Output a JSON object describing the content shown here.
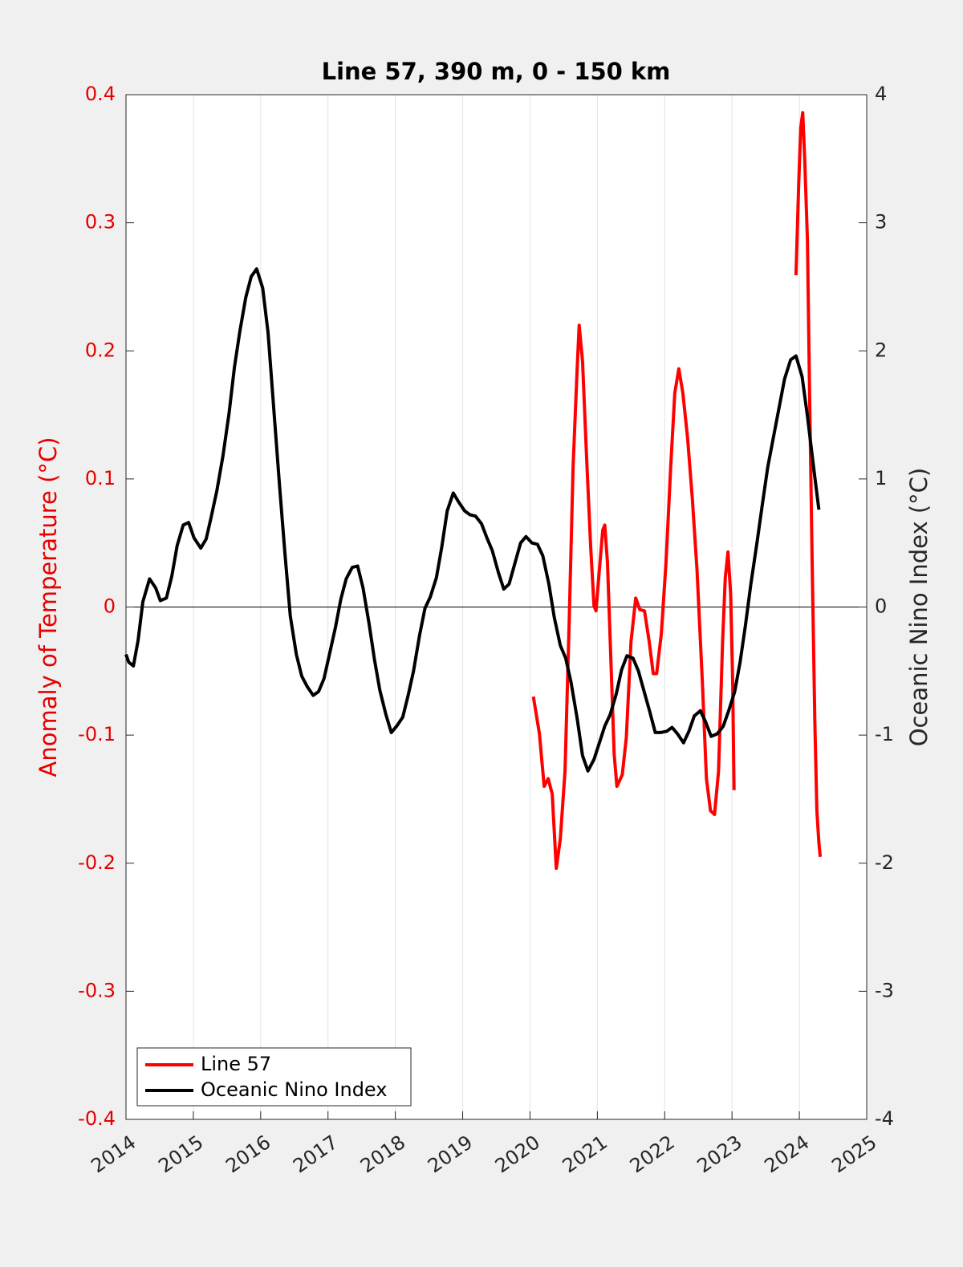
{
  "chart_data": {
    "type": "line",
    "title": "Line 57, 390 m, 0 - 150 km",
    "y_label": "Anomaly of Temperature (°C)",
    "y2_label": "Oceanic Nino Index (°C)",
    "xlim": [
      2014,
      2025
    ],
    "xticks": [
      2014,
      2015,
      2016,
      2017,
      2018,
      2019,
      2020,
      2021,
      2022,
      2023,
      2024,
      2025
    ],
    "ylim": [
      -0.4,
      0.4
    ],
    "yticks": [
      -0.4,
      -0.3,
      -0.2,
      -0.1,
      0,
      0.1,
      0.2,
      0.3,
      0.4
    ],
    "y2lim": [
      -4,
      4
    ],
    "y2ticks": [
      -4,
      -3,
      -2,
      -1,
      0,
      1,
      2,
      3,
      4
    ],
    "grid": true,
    "zero_line": true,
    "legend": "lower left",
    "y_label_color": "#e60000",
    "series": [
      {
        "name": "Line 57",
        "color": "#ff0000",
        "axis": "y",
        "x": [
          2020.05,
          2020.14,
          2020.21,
          2020.27,
          2020.33,
          2020.39,
          2020.45,
          2020.52,
          2020.58,
          2020.64,
          2020.7,
          2020.73,
          2020.78,
          2020.84,
          2020.9,
          2020.95,
          2020.98,
          2021.03,
          2021.08,
          2021.11,
          2021.15,
          2021.2,
          2021.25,
          2021.29,
          2021.37,
          2021.43,
          2021.5,
          2021.57,
          2021.63,
          2021.7,
          2021.77,
          2021.83,
          2021.88,
          2021.95,
          2022.02,
          2022.09,
          2022.15,
          2022.21,
          2022.27,
          2022.34,
          2022.41,
          2022.48,
          2022.56,
          2022.62,
          2022.68,
          2022.74,
          2022.8,
          2022.86,
          2022.9,
          2022.94,
          2022.98,
          2023.01,
          2023.03,
          2023.5,
          2023.95,
          2023.99,
          2024.02,
          2024.05,
          2024.08,
          2024.12,
          2024.15,
          2024.19,
          2024.23,
          2024.26,
          2024.29,
          2024.31
        ],
        "values": [
          -0.07,
          -0.099,
          -0.14,
          -0.134,
          -0.146,
          -0.204,
          -0.181,
          -0.128,
          -0.015,
          0.11,
          0.186,
          0.22,
          0.192,
          0.117,
          0.048,
          0.001,
          -0.003,
          0.029,
          0.06,
          0.064,
          0.035,
          -0.04,
          -0.115,
          -0.14,
          -0.131,
          -0.102,
          -0.027,
          0.007,
          -0.002,
          -0.003,
          -0.027,
          -0.052,
          -0.052,
          -0.021,
          0.035,
          0.11,
          0.167,
          0.186,
          0.167,
          0.132,
          0.085,
          0.029,
          -0.059,
          -0.134,
          -0.159,
          -0.162,
          -0.128,
          -0.027,
          0.023,
          0.043,
          0.01,
          -0.059,
          -0.143,
          null,
          0.259,
          0.33,
          0.374,
          0.386,
          0.349,
          0.286,
          0.173,
          0.035,
          -0.09,
          -0.159,
          -0.184,
          -0.195
        ]
      },
      {
        "name": "Oceanic Nino Index",
        "color": "#000000",
        "axis": "y2",
        "x": [
          2014,
          2014.04,
          2014.11,
          2014.18,
          2014.25,
          2014.35,
          2014.44,
          2014.51,
          2014.6,
          2014.68,
          2014.76,
          2014.85,
          2014.93,
          2015.01,
          2015.11,
          2015.19,
          2015.26,
          2015.35,
          2015.44,
          2015.53,
          2015.61,
          2015.69,
          2015.78,
          2015.86,
          2015.94,
          2016.03,
          2016.11,
          2016.19,
          2016.28,
          2016.36,
          2016.44,
          2016.53,
          2016.61,
          2016.69,
          2016.78,
          2016.86,
          2016.94,
          2017.03,
          2017.11,
          2017.19,
          2017.27,
          2017.36,
          2017.44,
          2017.52,
          2017.61,
          2017.69,
          2017.77,
          2017.86,
          2017.94,
          2018.02,
          2018.11,
          2018.19,
          2018.27,
          2018.36,
          2018.44,
          2018.52,
          2018.61,
          2018.69,
          2018.77,
          2018.86,
          2018.94,
          2019.03,
          2019.11,
          2019.19,
          2019.28,
          2019.36,
          2019.44,
          2019.53,
          2019.61,
          2019.69,
          2019.78,
          2019.86,
          2019.94,
          2020.03,
          2020.11,
          2020.19,
          2020.28,
          2020.36,
          2020.45,
          2020.53,
          2020.61,
          2020.7,
          2020.78,
          2020.86,
          2020.95,
          2021.03,
          2021.11,
          2021.19,
          2021.28,
          2021.36,
          2021.44,
          2021.53,
          2021.61,
          2021.7,
          2021.78,
          2021.86,
          2021.94,
          2022.03,
          2022.11,
          2022.19,
          2022.28,
          2022.36,
          2022.44,
          2022.53,
          2022.61,
          2022.69,
          2022.78,
          2022.87,
          2022.95,
          2023.04,
          2023.12,
          2023.2,
          2023.28,
          2023.37,
          2023.45,
          2023.53,
          2023.62,
          2023.7,
          2023.78,
          2023.87,
          2023.95,
          2024.04,
          2024.12,
          2024.2,
          2024.29
        ],
        "values": [
          -0.37,
          -0.43,
          -0.46,
          -0.26,
          0.04,
          0.22,
          0.15,
          0.05,
          0.07,
          0.24,
          0.48,
          0.64,
          0.66,
          0.54,
          0.46,
          0.53,
          0.69,
          0.91,
          1.18,
          1.51,
          1.87,
          2.15,
          2.42,
          2.58,
          2.64,
          2.49,
          2.14,
          1.58,
          0.95,
          0.42,
          -0.07,
          -0.37,
          -0.54,
          -0.62,
          -0.69,
          -0.66,
          -0.56,
          -0.35,
          -0.16,
          0.06,
          0.22,
          0.31,
          0.32,
          0.15,
          -0.13,
          -0.41,
          -0.65,
          -0.84,
          -0.98,
          -0.93,
          -0.86,
          -0.69,
          -0.5,
          -0.22,
          -0.01,
          0.08,
          0.23,
          0.47,
          0.75,
          0.89,
          0.82,
          0.75,
          0.72,
          0.71,
          0.65,
          0.54,
          0.44,
          0.27,
          0.14,
          0.18,
          0.35,
          0.5,
          0.55,
          0.5,
          0.49,
          0.4,
          0.18,
          -0.08,
          -0.3,
          -0.4,
          -0.59,
          -0.87,
          -1.16,
          -1.28,
          -1.19,
          -1.06,
          -0.93,
          -0.84,
          -0.68,
          -0.49,
          -0.38,
          -0.4,
          -0.5,
          -0.67,
          -0.82,
          -0.98,
          -0.98,
          -0.97,
          -0.94,
          -0.99,
          -1.06,
          -0.97,
          -0.85,
          -0.81,
          -0.9,
          -1.01,
          -0.99,
          -0.93,
          -0.81,
          -0.66,
          -0.43,
          -0.14,
          0.18,
          0.5,
          0.8,
          1.09,
          1.34,
          1.56,
          1.78,
          1.93,
          1.96,
          1.8,
          1.49,
          1.14,
          0.76
        ]
      }
    ]
  }
}
